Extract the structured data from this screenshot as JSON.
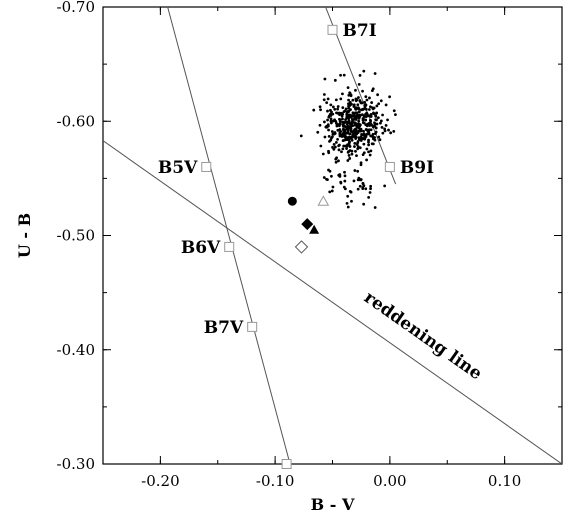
{
  "chart_data": {
    "type": "scatter",
    "xlabel": "B - V",
    "ylabel": "U - B",
    "xlim": [
      -0.25,
      0.15
    ],
    "ylim": [
      -0.3,
      -0.7
    ],
    "y_inverted": true,
    "grid": false,
    "xticks": [
      -0.2,
      -0.1,
      0.0,
      0.1
    ],
    "xtick_labels": [
      "-0.20",
      "-0.10",
      "0.00",
      "0.10"
    ],
    "yticks": [
      -0.7,
      -0.6,
      -0.5,
      -0.4,
      -0.3
    ],
    "ytick_labels": [
      "-0.70",
      "-0.60",
      "-0.50",
      "-0.40",
      "-0.30"
    ],
    "colors": {
      "axis": "#000000",
      "line": "#555555",
      "reference_marker": "#999999",
      "points": "#000000"
    },
    "dwarf_sequence": {
      "points": [
        {
          "label": "B5V",
          "x": -0.16,
          "y": -0.56
        },
        {
          "label": "B6V",
          "x": -0.14,
          "y": -0.49
        },
        {
          "label": "B7V",
          "x": -0.12,
          "y": -0.42
        },
        {
          "label": "",
          "x": -0.09,
          "y": -0.3
        }
      ],
      "line": [
        [
          -0.195,
          -0.705
        ],
        [
          -0.087,
          -0.3
        ]
      ]
    },
    "supergiant_sequence": {
      "points": [
        {
          "label": "B7I",
          "x": -0.05,
          "y": -0.68
        },
        {
          "label": "B9I",
          "x": 0.0,
          "y": -0.56
        }
      ],
      "line": [
        [
          -0.058,
          -0.705
        ],
        [
          0.005,
          -0.545
        ]
      ]
    },
    "reddening_line": {
      "label": "reddening line",
      "points": [
        [
          -0.25,
          -0.583
        ],
        [
          0.15,
          -0.3
        ]
      ]
    },
    "special_markers": [
      {
        "shape": "filled-circle",
        "x": -0.085,
        "y": -0.53
      },
      {
        "shape": "open-triangle",
        "x": -0.058,
        "y": -0.53
      },
      {
        "shape": "filled-diamond",
        "x": -0.072,
        "y": -0.51
      },
      {
        "shape": "filled-triangle",
        "x": -0.066,
        "y": -0.505
      },
      {
        "shape": "open-diamond",
        "x": -0.077,
        "y": -0.49
      }
    ],
    "cluster": {
      "description_markers": "small black dots",
      "count": 520,
      "main": {
        "x_mean": -0.032,
        "y_mean": -0.597,
        "x_sd": 0.013,
        "y_sd": 0.014,
        "count": 470
      },
      "tail": {
        "x_mean": -0.035,
        "y_mean": -0.545,
        "x_sd": 0.012,
        "y_sd": 0.008,
        "count": 50
      }
    }
  }
}
